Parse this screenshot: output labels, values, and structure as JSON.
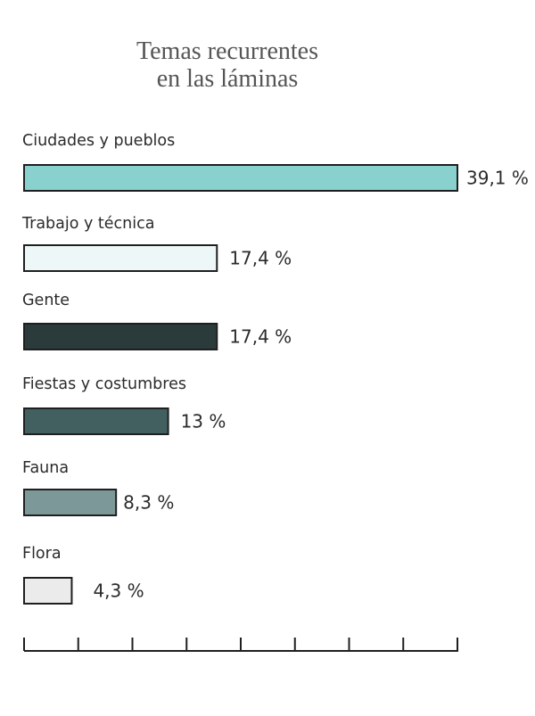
{
  "chart_data": {
    "type": "bar",
    "orientation": "horizontal",
    "title_lines": [
      "Temas recurrentes",
      "en las láminas"
    ],
    "categories": [
      "Ciudades y pueblos",
      "Trabajo y técnica",
      "Gente",
      "Fiestas y costumbres",
      "Fauna",
      "Flora"
    ],
    "values": [
      39.1,
      17.4,
      17.4,
      13,
      8.3,
      4.3
    ],
    "value_labels": [
      "39,1 %",
      "17,4 %",
      "17,4 %",
      "13 %",
      "8,3 %",
      "4,3 %"
    ],
    "colors": [
      "#88d1cf",
      "#eef7f7",
      "#2b3b3b",
      "#426060",
      "#7d9898",
      "#ebebeb"
    ],
    "xlim": [
      0,
      39.1
    ],
    "axis_ticks": 9,
    "grid": false
  }
}
